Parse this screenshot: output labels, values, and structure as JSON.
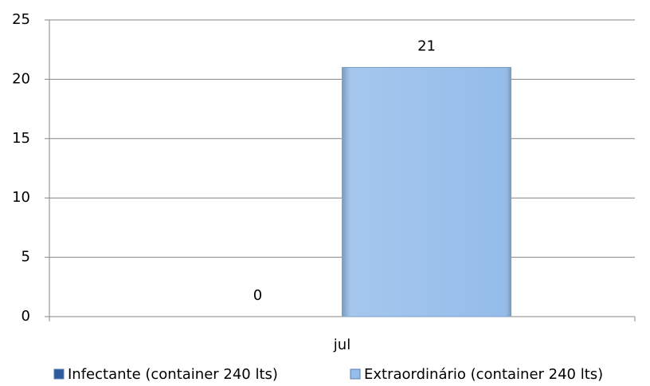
{
  "chart_data": {
    "type": "bar",
    "categories": [
      "jul"
    ],
    "series": [
      {
        "name": "Infectante (container 240 lts)",
        "color": "#2c5a9a",
        "values": [
          0
        ]
      },
      {
        "name": "Extraordinário (container 240 lts)",
        "color": "#95bdea",
        "values": [
          21
        ]
      }
    ],
    "ylim": [
      0,
      25
    ],
    "yticks": [
      0,
      5,
      10,
      15,
      20,
      25
    ],
    "grid": true,
    "legend": "bottom"
  }
}
